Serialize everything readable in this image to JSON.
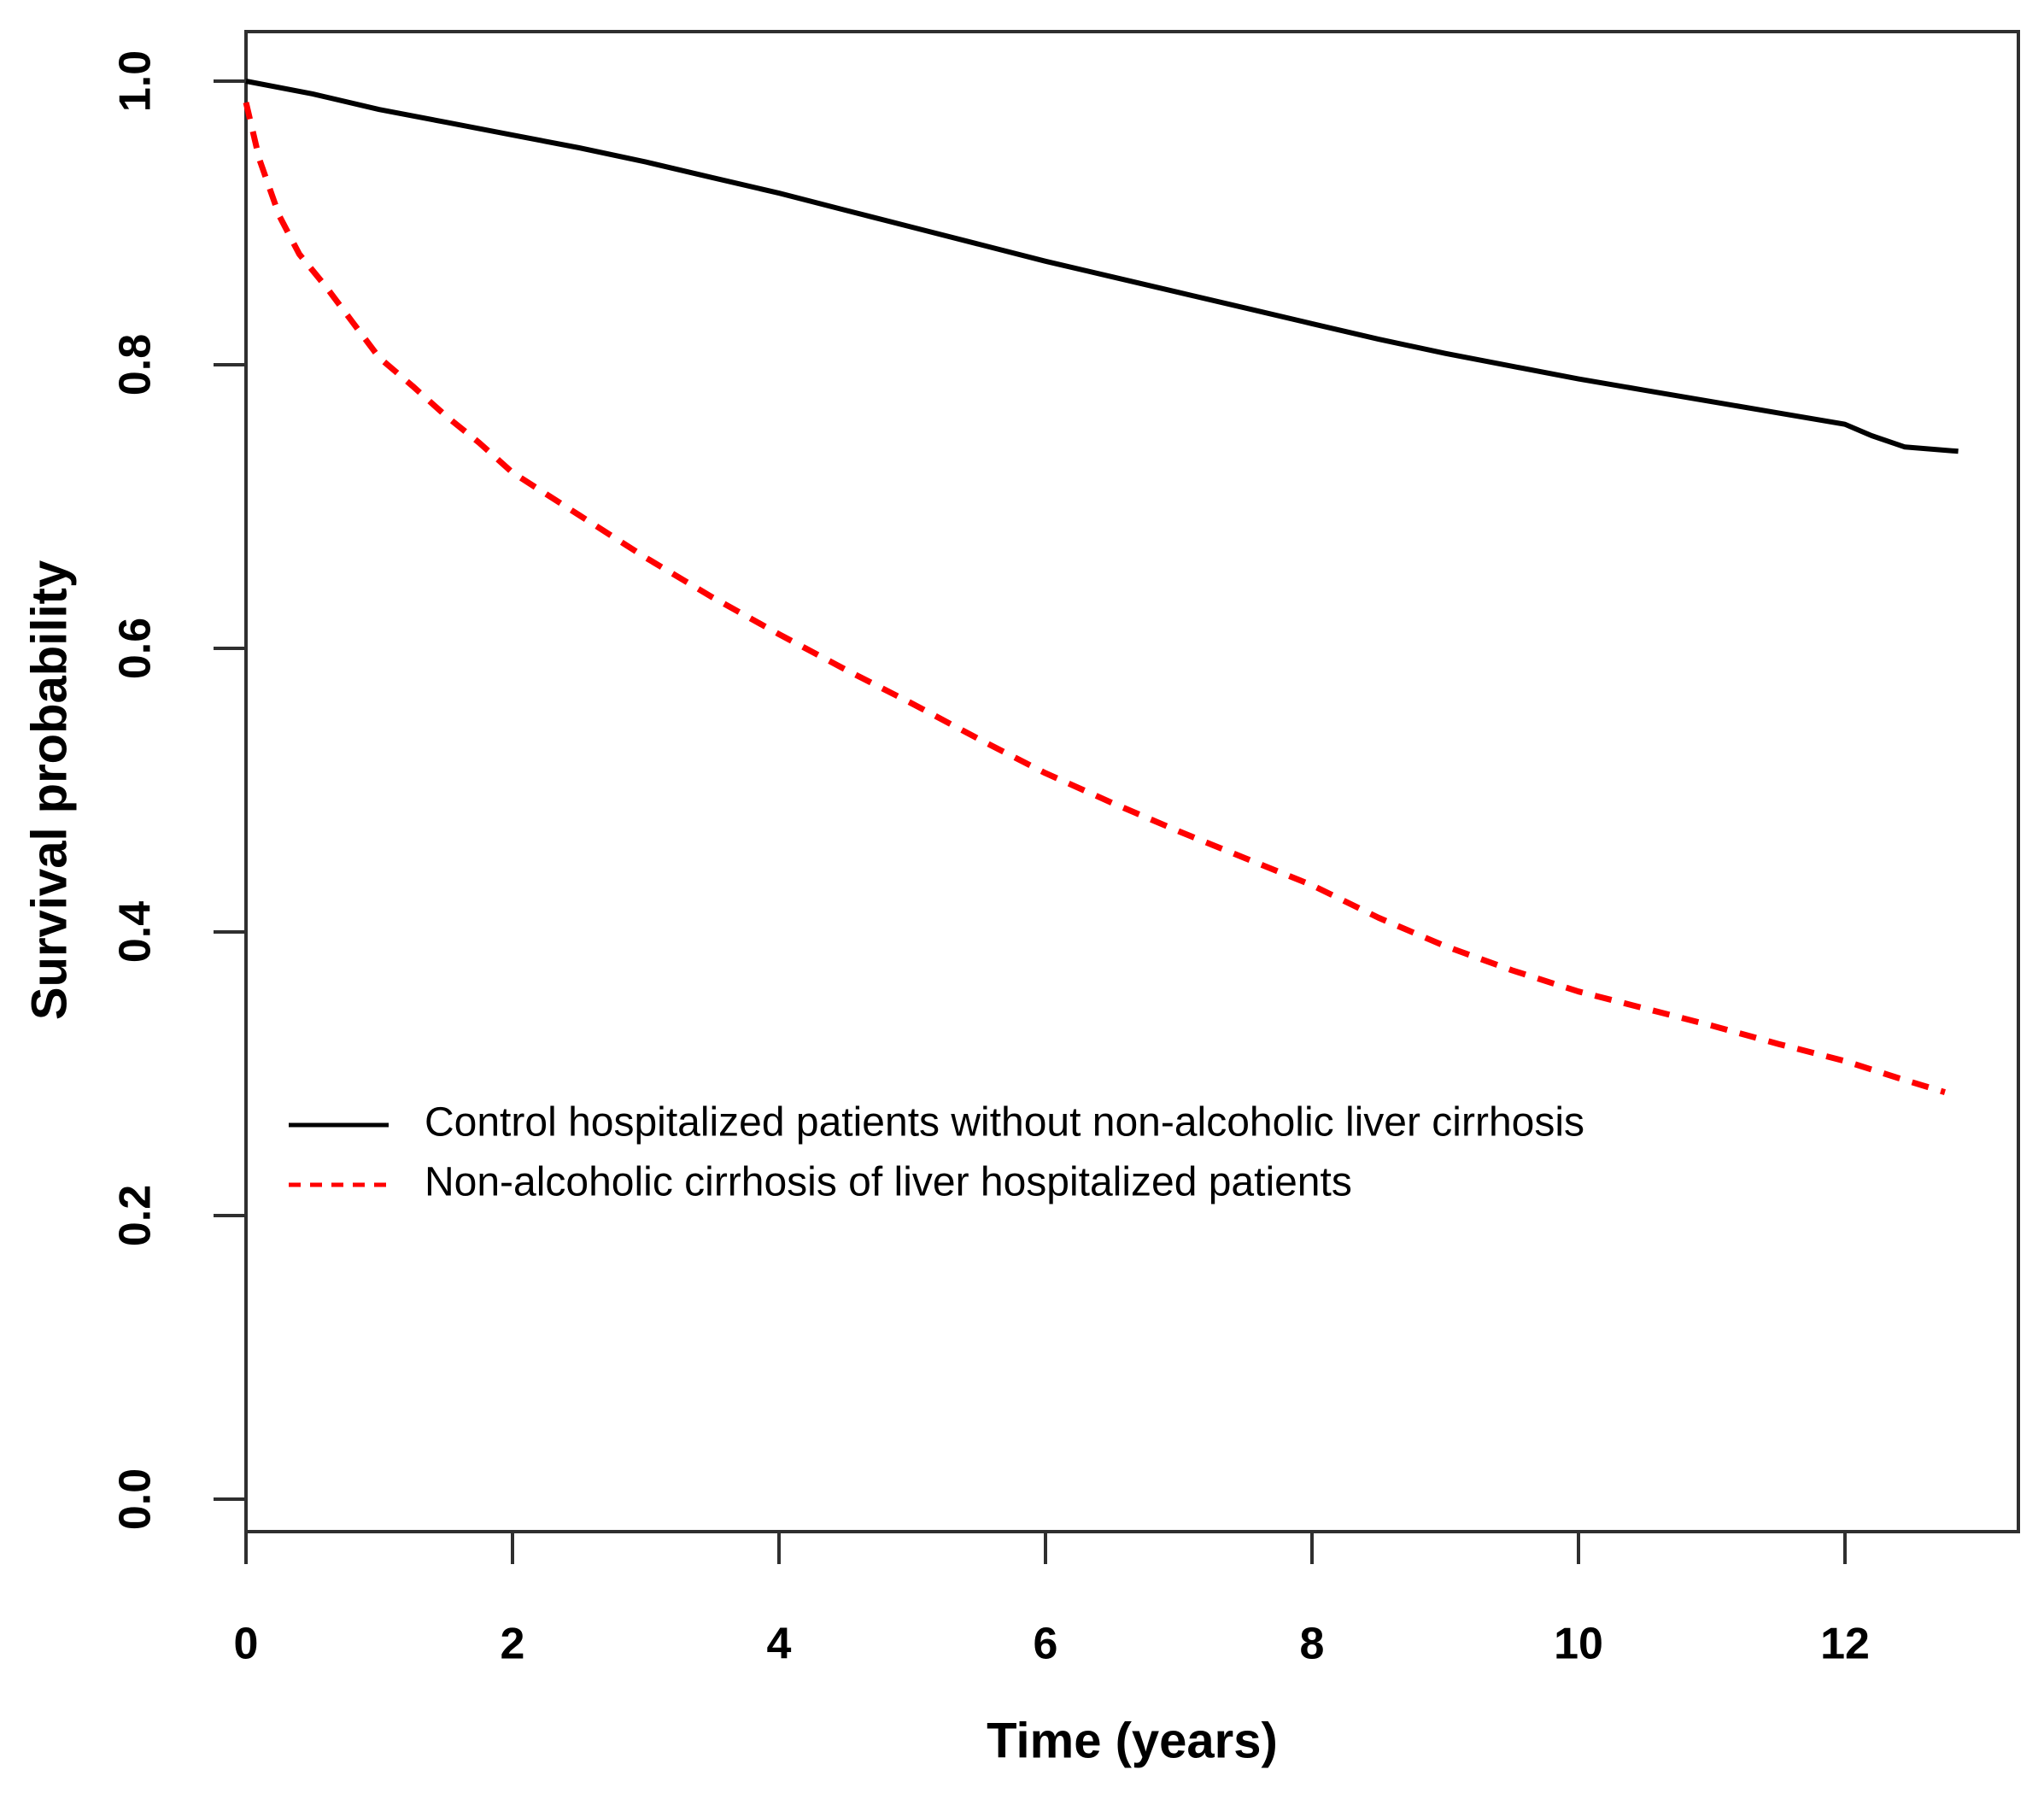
{
  "figure": {
    "background": "#ffffff",
    "frame_color": "#2f2f2f",
    "text_color": "#000000"
  },
  "axes": {
    "x_title": "Time (years)",
    "y_title": "Survival probability",
    "x_tick_labels": [
      "0",
      "2",
      "4",
      "6",
      "8",
      "10",
      "12"
    ],
    "y_tick_labels": [
      "0.0",
      "0.2",
      "0.4",
      "0.6",
      "0.8",
      "1.0"
    ]
  },
  "legend": {
    "items": [
      {
        "label": "Control hospitalized patients without non-alcoholic liver cirrhosis",
        "color": "#000000",
        "style": "solid"
      },
      {
        "label": "Non-alcoholic cirrhosis of liver hospitalized patients",
        "color": "#ff0000",
        "style": "dashed"
      }
    ]
  },
  "chart_data": {
    "type": "line",
    "title": "",
    "xlabel": "Time (years)",
    "ylabel": "Survival probability",
    "xlim": [
      0,
      13.3
    ],
    "ylim": [
      0.0,
      1.0
    ],
    "x_ticks": [
      0,
      2,
      4,
      6,
      8,
      10,
      12
    ],
    "y_ticks": [
      0.0,
      0.2,
      0.4,
      0.6,
      0.8,
      1.0
    ],
    "grid": false,
    "legend_position": "inside-lower-left",
    "series": [
      {
        "name": "Control hospitalized patients without non-alcoholic liver cirrhosis",
        "color": "#000000",
        "line_style": "solid",
        "x": [
          0,
          0.5,
          1,
          1.5,
          2,
          2.5,
          3,
          3.5,
          4,
          4.5,
          5,
          5.5,
          6,
          6.5,
          7,
          7.5,
          8,
          8.5,
          9,
          9.5,
          10,
          10.5,
          11,
          11.5,
          12,
          12.2,
          12.45,
          12.85
        ],
        "y": [
          1.0,
          0.991,
          0.98,
          0.971,
          0.962,
          0.953,
          0.943,
          0.932,
          0.921,
          0.909,
          0.897,
          0.885,
          0.873,
          0.862,
          0.851,
          0.84,
          0.829,
          0.818,
          0.808,
          0.799,
          0.79,
          0.782,
          0.774,
          0.766,
          0.758,
          0.75,
          0.742,
          0.739
        ]
      },
      {
        "name": "Non-alcoholic cirrhosis of liver hospitalized patients",
        "color": "#ff0000",
        "line_style": "dashed",
        "x": [
          0,
          0.1,
          0.25,
          0.4,
          0.6,
          0.8,
          1,
          1.25,
          1.5,
          1.75,
          2,
          2.5,
          3,
          3.5,
          4,
          4.5,
          5,
          5.5,
          6,
          6.5,
          7,
          7.5,
          8,
          8.5,
          9,
          9.5,
          10,
          10.5,
          11,
          11.5,
          12,
          12.4,
          12.75
        ],
        "y": [
          0.985,
          0.945,
          0.905,
          0.878,
          0.855,
          0.83,
          0.805,
          0.785,
          0.764,
          0.745,
          0.724,
          0.694,
          0.664,
          0.636,
          0.61,
          0.585,
          0.561,
          0.536,
          0.512,
          0.491,
          0.471,
          0.452,
          0.433,
          0.41,
          0.39,
          0.373,
          0.358,
          0.346,
          0.334,
          0.321,
          0.309,
          0.297,
          0.287
        ]
      }
    ]
  }
}
